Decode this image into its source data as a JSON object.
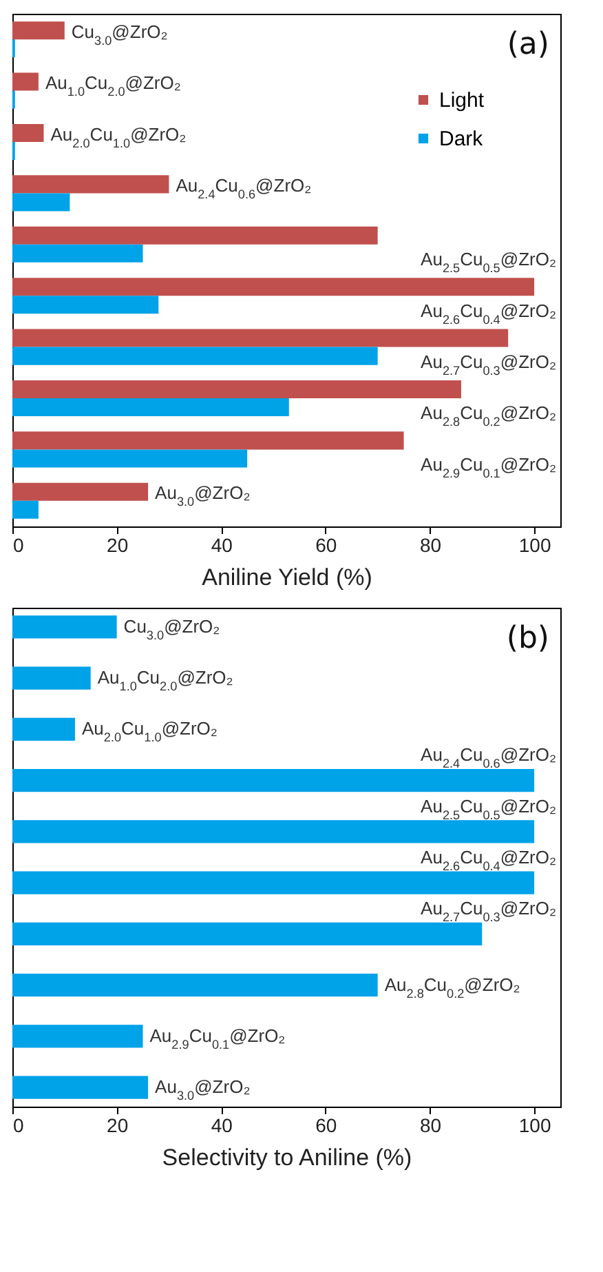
{
  "chart_data": [
    {
      "type": "bar",
      "orientation": "horizontal",
      "xlabel": "Aniline Yield (%)",
      "xlim": [
        0,
        105
      ],
      "xticks": [
        0,
        20,
        40,
        60,
        80,
        100
      ],
      "grid": false,
      "legend": "top right",
      "tick_labels": "x",
      "categories": [
        "Cu$_{3.0}$@ZrO₂",
        "Au$_{1.0}$Cu$_{2.0}$@ZrO₂",
        "Au$_{2.0}$Cu$_{1.0}$@ZrO₂",
        "Au$_{2.4}$Cu$_{0.6}$@ZrO₂",
        "Au$_{2.5}$Cu$_{0.5}$@ZrO₂",
        "Au$_{2.6}$Cu$_{0.4}$@ZrO₂",
        "Au$_{2.7}$Cu$_{0.3}$@ZrO₂",
        "Au$_{2.8}$Cu$_{0.2}$@ZrO₂",
        "Au$_{2.9}$Cu$_{0.1}$@ZrO₂",
        "Au$_{3.0}$@ZrO₂"
      ],
      "series": [
        {
          "name": "Light",
          "color": "#c0504d",
          "values": [
            10,
            5,
            6,
            30,
            70,
            100,
            95,
            86,
            75,
            26
          ]
        },
        {
          "name": "Dark",
          "color": "#00a2e8",
          "values": [
            0.5,
            0.5,
            0.5,
            11,
            25,
            28,
            70,
            53,
            45,
            5
          ]
        }
      ],
      "annotations": [
        "(a)"
      ]
    },
    {
      "type": "bar",
      "orientation": "horizontal",
      "xlabel": "Selectivity to Aniline (%)",
      "xlim": [
        0,
        105
      ],
      "xticks": [
        0,
        20,
        40,
        60,
        80,
        100
      ],
      "grid": false,
      "tick_labels": "x",
      "categories": [
        "Cu$_{3.0}$@ZrO₂",
        "Au$_{1.0}$Cu$_{2.0}$@ZrO₂",
        "Au$_{2.0}$Cu$_{1.0}$@ZrO₂",
        "Au$_{2.4}$Cu$_{0.6}$@ZrO₂",
        "Au$_{2.5}$Cu$_{0.5}$@ZrO₂",
        "Au$_{2.6}$Cu$_{0.4}$@ZrO₂",
        "Au$_{2.7}$Cu$_{0.3}$@ZrO₂",
        "Au$_{2.8}$Cu$_{0.2}$@ZrO₂",
        "Au$_{2.9}$Cu$_{0.1}$@ZrO₂",
        "Au$_{3.0}$@ZrO₂"
      ],
      "values": [
        20,
        15,
        12,
        100,
        100,
        100,
        90,
        70,
        25,
        26
      ],
      "color": "#00a2e8",
      "annotations": [
        "(b)"
      ]
    }
  ]
}
